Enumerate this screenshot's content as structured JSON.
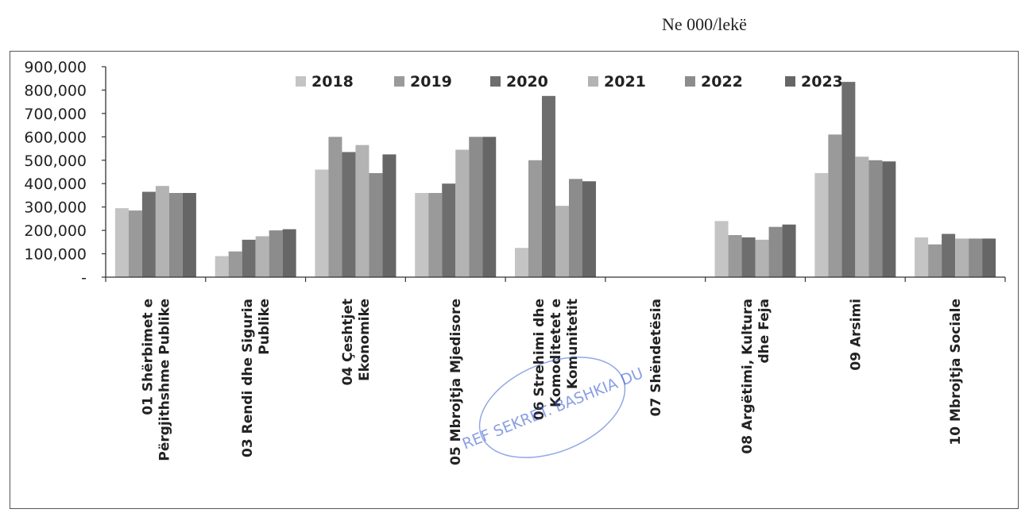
{
  "page": {
    "unit_note": "Ne 000/lekë"
  },
  "stamp": {
    "text": "REF SEKRET. BASHKIA DU"
  },
  "chart_data": {
    "type": "bar",
    "title": "",
    "xlabel": "",
    "ylabel": "",
    "ylim": [
      0,
      900000
    ],
    "yticks": [
      0,
      100000,
      200000,
      300000,
      400000,
      500000,
      600000,
      700000,
      800000,
      900000
    ],
    "ytick_labels": [
      "-",
      "100,000",
      "200,000",
      "300,000",
      "400,000",
      "500,000",
      "600,000",
      "700,000",
      "800,000",
      "900,000"
    ],
    "grid": false,
    "legend_position": "top",
    "categories": [
      [
        "01 Shërbimet e",
        "Përgjithshme Publike"
      ],
      [
        "03 Rendi dhe Siguria",
        "Publike"
      ],
      [
        "04 Çeshtjet",
        "Ekonomike"
      ],
      [
        "05 Mbrojtja Mjedisore"
      ],
      [
        "06 Strehimi dhe",
        "Komoditetet e",
        "Komunitetit"
      ],
      [
        "07 Shëndetësia"
      ],
      [
        "08 Argëtimi, Kultura",
        "dhe Feja"
      ],
      [
        "09 Arsimi"
      ],
      [
        "10 Mbrojtja Sociale"
      ]
    ],
    "series": [
      {
        "name": "2018",
        "color": "#c4c4c4",
        "values": [
          295000,
          90000,
          460000,
          360000,
          125000,
          0,
          240000,
          445000,
          170000
        ]
      },
      {
        "name": "2019",
        "color": "#9a9a9a",
        "values": [
          285000,
          110000,
          600000,
          360000,
          500000,
          0,
          180000,
          610000,
          140000
        ]
      },
      {
        "name": "2020",
        "color": "#6e6e6e",
        "values": [
          365000,
          160000,
          535000,
          400000,
          775000,
          0,
          170000,
          835000,
          185000
        ]
      },
      {
        "name": "2021",
        "color": "#b3b3b3",
        "values": [
          390000,
          175000,
          565000,
          545000,
          305000,
          0,
          160000,
          515000,
          165000
        ]
      },
      {
        "name": "2022",
        "color": "#8c8c8c",
        "values": [
          360000,
          200000,
          445000,
          600000,
          420000,
          0,
          215000,
          500000,
          165000
        ]
      },
      {
        "name": "2023",
        "color": "#666666",
        "values": [
          360000,
          205000,
          525000,
          600000,
          410000,
          0,
          225000,
          495000,
          165000
        ]
      }
    ]
  }
}
